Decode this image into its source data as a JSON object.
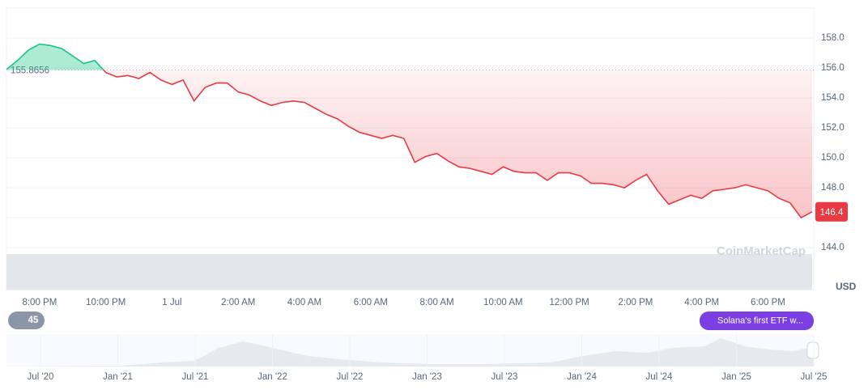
{
  "chart_data": {
    "type": "line",
    "categories": [
      null,
      null,
      null,
      "8:00 PM",
      null,
      null,
      null,
      null,
      null,
      "10:00 PM",
      null,
      null,
      null,
      null,
      null,
      "1 Jul",
      null,
      null,
      null,
      null,
      null,
      "2:00 AM",
      null,
      null,
      null,
      null,
      null,
      "4:00 AM",
      null,
      null,
      null,
      null,
      null,
      "6:00 AM",
      null,
      null,
      null,
      null,
      null,
      "8:00 AM",
      null,
      null,
      null,
      null,
      null,
      "10:00 AM",
      null,
      null,
      null,
      null,
      null,
      "12:00 PM",
      null,
      null,
      null,
      null,
      null,
      "2:00 PM",
      null,
      null,
      null,
      null,
      null,
      "4:00 PM",
      null,
      null,
      null,
      null,
      null,
      "6:00 PM",
      null,
      null,
      null,
      null
    ],
    "values": [
      155.9,
      156.5,
      157.2,
      157.6,
      157.5,
      157.3,
      156.8,
      156.3,
      156.5,
      155.7,
      155.4,
      155.5,
      155.3,
      155.7,
      155.2,
      154.9,
      155.2,
      153.8,
      154.7,
      155.0,
      155.0,
      154.4,
      154.2,
      153.8,
      153.5,
      153.7,
      153.8,
      153.7,
      153.3,
      152.9,
      152.6,
      152.1,
      151.7,
      151.5,
      151.3,
      151.5,
      151.3,
      149.7,
      150.1,
      150.3,
      149.8,
      149.4,
      149.3,
      149.1,
      148.9,
      149.4,
      149.1,
      149.0,
      149.0,
      148.5,
      149.0,
      149.0,
      148.8,
      148.3,
      148.3,
      148.2,
      148.0,
      148.5,
      148.9,
      147.8,
      146.9,
      147.2,
      147.5,
      147.3,
      147.8,
      147.9,
      148.0,
      148.2,
      148.0,
      147.8,
      147.3,
      147.0,
      146.0,
      146.4
    ],
    "baseline": 155.8656,
    "up_color": "#16c784",
    "down_color": "#ea3943",
    "ylim": [
      141.2,
      160
    ],
    "yticks": [
      {
        "value": 144,
        "label": "144.0"
      },
      {
        "value": 146,
        "label": "146.0"
      },
      {
        "value": 148,
        "label": "148.0"
      },
      {
        "value": 150,
        "label": "150.0"
      },
      {
        "value": 152,
        "label": "152.0"
      },
      {
        "value": 154,
        "label": "154.0"
      },
      {
        "value": 156,
        "label": "156.0"
      },
      {
        "value": 158,
        "label": "158.0"
      }
    ],
    "grid": true,
    "currency": "USD",
    "watermark": "CoinMarketCap",
    "badge_count": 45,
    "event_label": "Solana's first ETF w...",
    "navigator_labels": [
      "Jul '20",
      "Jan '21",
      "Jul '21",
      "Jan '22",
      "Jul '22",
      "Jan '23",
      "Jul '23",
      "Jan '24",
      "Jul '24",
      "Jan '25",
      "Jul '25"
    ]
  }
}
